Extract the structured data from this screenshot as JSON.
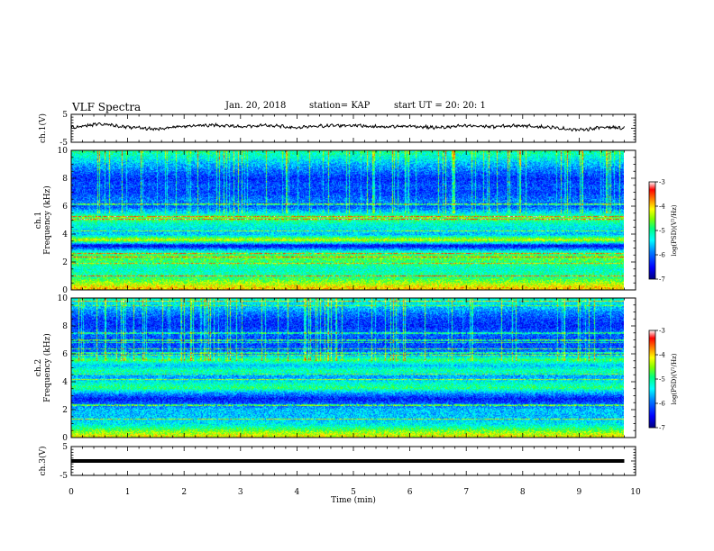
{
  "header": {
    "title": "VLF Spectra",
    "date": "Jan. 20, 2018",
    "station": "station= KAP",
    "start": "start UT =  20: 20: 1"
  },
  "colorbar": {
    "label": "log(PSD)(V²/Hz)",
    "ticks": [
      "-3",
      "-4",
      "-5",
      "-6",
      "-7"
    ],
    "range": [
      -7,
      -3
    ],
    "colors": [
      "#000080",
      "#0000ff",
      "#0080ff",
      "#00ffff",
      "#00ff80",
      "#80ff00",
      "#ffff00",
      "#ff8000",
      "#ff0000",
      "#ffffff"
    ]
  },
  "chart_data": [
    {
      "type": "line",
      "panel": "waveform-ch1",
      "ylabel": "ch.1(V)",
      "ylim": [
        -5,
        5
      ],
      "ytick_labels": [
        "5",
        "-5"
      ],
      "xlim": [
        0,
        10
      ],
      "x": [
        0,
        0.5,
        1,
        1.5,
        2,
        2.5,
        3,
        3.5,
        4,
        4.5,
        5,
        5.5,
        6,
        6.5,
        7,
        7.5,
        8,
        8.5,
        9,
        9.5,
        9.8
      ],
      "y": [
        0.3,
        1.6,
        0.4,
        -0.3,
        0.8,
        1.2,
        0.6,
        1.0,
        0.2,
        0.9,
        1.1,
        0.5,
        0.8,
        0.2,
        0.9,
        0.6,
        1.0,
        0.3,
        -0.6,
        0.5,
        0.0
      ]
    },
    {
      "type": "heatmap",
      "panel": "spectrogram-ch1",
      "ylabel": "ch.1\nFrequency (kHz)",
      "ylim": [
        0,
        10
      ],
      "ytick_labels": [
        "0",
        "2",
        "4",
        "6",
        "8",
        "10"
      ],
      "xlim": [
        0,
        10
      ],
      "colorbar_label": "log(PSD)(V²/Hz)",
      "band_profile_khz": [
        0.2,
        0.5,
        1.0,
        1.5,
        2.0,
        2.4,
        2.8,
        3.2,
        3.6,
        4.0,
        4.4,
        4.8,
        5.2,
        5.6,
        6.0,
        6.4,
        7.0,
        7.5,
        8.0,
        8.5,
        9.0,
        9.5,
        10.0
      ],
      "log_psd_profile": [
        -4.0,
        -4.4,
        -5.0,
        -5.2,
        -4.9,
        -4.6,
        -5.3,
        -6.6,
        -4.2,
        -5.6,
        -5.4,
        -5.2,
        -4.6,
        -5.5,
        -6.1,
        -5.9,
        -6.2,
        -6.1,
        -6.3,
        -6.0,
        -5.7,
        -5.3,
        -5.0
      ]
    },
    {
      "type": "heatmap",
      "panel": "spectrogram-ch2",
      "ylabel": "ch.2\nFrequency (kHz)",
      "ylim": [
        0,
        10
      ],
      "ytick_labels": [
        "0",
        "2",
        "4",
        "6",
        "8",
        "10"
      ],
      "xlim": [
        0,
        10
      ],
      "colorbar_label": "log(PSD)(V²/Hz)",
      "band_profile_khz": [
        0.2,
        0.5,
        1.0,
        1.5,
        2.0,
        2.4,
        2.8,
        3.2,
        3.6,
        4.0,
        4.4,
        4.8,
        5.2,
        5.6,
        6.0,
        6.4,
        7.0,
        7.5,
        8.0,
        8.5,
        9.0,
        9.5,
        10.0
      ],
      "log_psd_profile": [
        -4.2,
        -4.6,
        -5.4,
        -5.6,
        -5.6,
        -6.0,
        -6.4,
        -5.8,
        -4.9,
        -5.3,
        -5.8,
        -5.0,
        -5.6,
        -4.8,
        -5.9,
        -6.1,
        -6.2,
        -6.0,
        -6.3,
        -6.2,
        -5.9,
        -5.5,
        -5.2
      ]
    },
    {
      "type": "line",
      "panel": "waveform-ch3",
      "ylabel": "ch.3(V)",
      "ylim": [
        -5,
        5
      ],
      "ytick_labels": [
        "5",
        "-5"
      ],
      "xlim": [
        0,
        10
      ],
      "x": [
        0,
        9.8
      ],
      "y": [
        0,
        0
      ]
    }
  ],
  "xaxis": {
    "label": "Time (min)",
    "ticks": [
      "0",
      "1",
      "2",
      "3",
      "4",
      "5",
      "6",
      "7",
      "8",
      "9",
      "10"
    ]
  }
}
